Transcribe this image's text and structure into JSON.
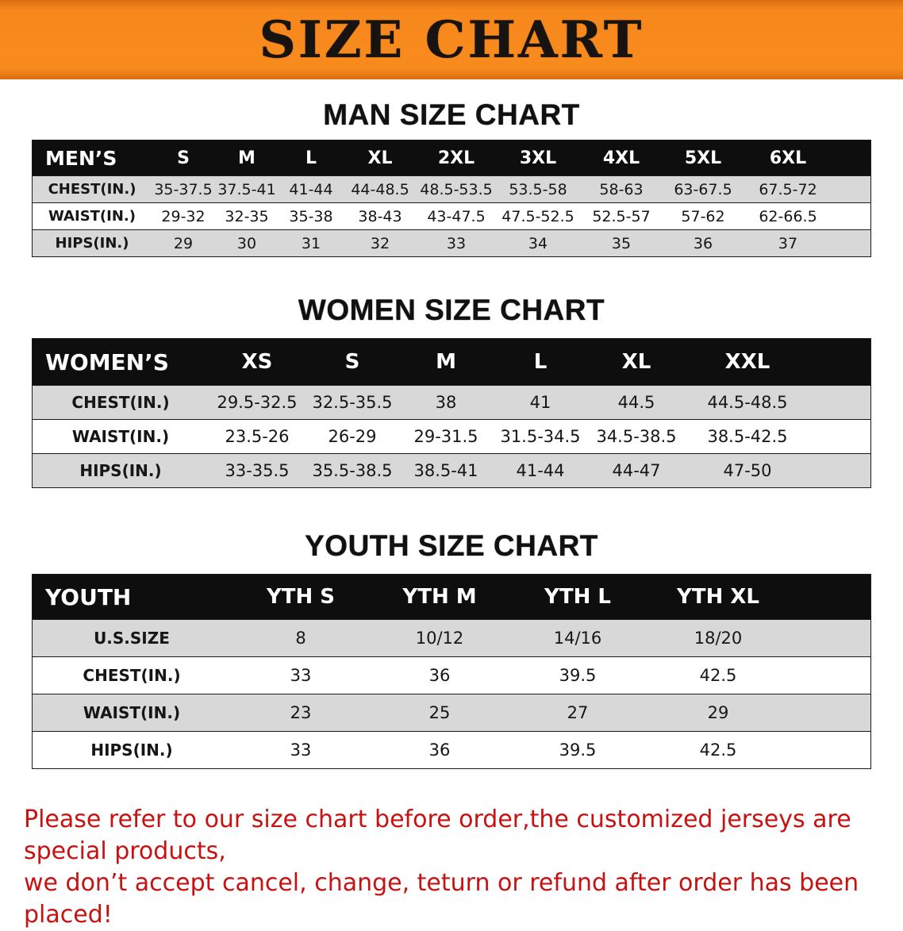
{
  "banner": {
    "title": "SIZE CHART"
  },
  "sections": [
    {
      "heading": "MAN SIZE CHART",
      "table": {
        "header": [
          "MEN’S",
          "S",
          "M",
          "L",
          "XL",
          "2XL",
          "3XL",
          "4XL",
          "5XL",
          "6XL"
        ],
        "rows": [
          {
            "label": "CHEST(IN.)",
            "values": [
              "35-37.5",
              "37.5-41",
              "41-44",
              "44-48.5",
              "48.5-53.5",
              "53.5-58",
              "58-63",
              "63-67.5",
              "67.5-72"
            ]
          },
          {
            "label": "WAIST(IN.)",
            "values": [
              "29-32",
              "32-35",
              "35-38",
              "38-43",
              "43-47.5",
              "47.5-52.5",
              "52.5-57",
              "57-62",
              "62-66.5"
            ]
          },
          {
            "label": "HIPS(IN.)",
            "values": [
              "29",
              "30",
              "31",
              "32",
              "33",
              "34",
              "35",
              "36",
              "37"
            ]
          }
        ]
      }
    },
    {
      "heading": "WOMEN SIZE CHART",
      "table": {
        "header": [
          "WOMEN’S",
          "XS",
          "S",
          "M",
          "L",
          "XL",
          "XXL"
        ],
        "rows": [
          {
            "label": "CHEST(IN.)",
            "values": [
              "29.5-32.5",
              "32.5-35.5",
              "38",
              "41",
              "44.5",
              "44.5-48.5"
            ]
          },
          {
            "label": "WAIST(IN.)",
            "values": [
              "23.5-26",
              "26-29",
              "29-31.5",
              "31.5-34.5",
              "34.5-38.5",
              "38.5-42.5"
            ]
          },
          {
            "label": "HIPS(IN.)",
            "values": [
              "33-35.5",
              "35.5-38.5",
              "38.5-41",
              "41-44",
              "44-47",
              "47-50"
            ]
          }
        ]
      }
    },
    {
      "heading": "YOUTH SIZE CHART",
      "table": {
        "header": [
          "YOUTH",
          "YTH S",
          "YTH M",
          "YTH L",
          "YTH XL"
        ],
        "rows": [
          {
            "label": "U.S.SIZE",
            "values": [
              "8",
              "10/12",
              "14/16",
              "18/20"
            ]
          },
          {
            "label": "CHEST(IN.)",
            "values": [
              "33",
              "36",
              "39.5",
              "42.5"
            ]
          },
          {
            "label": "WAIST(IN.)",
            "values": [
              "23",
              "25",
              "27",
              "29"
            ]
          },
          {
            "label": "HIPS(IN.)",
            "values": [
              "33",
              "36",
              "39.5",
              "42.5"
            ]
          }
        ]
      }
    }
  ],
  "footer": {
    "line1": "Please refer to our size chart before order,the customized jerseys are special products,",
    "line2": "we don’t accept cancel, change, teturn or refund after order has been placed!"
  },
  "colors": {
    "banner_orange": "#f6871c",
    "header_black": "#0e0e0e",
    "row_gray": "#d8d8d8",
    "notice_red": "#c81212"
  }
}
